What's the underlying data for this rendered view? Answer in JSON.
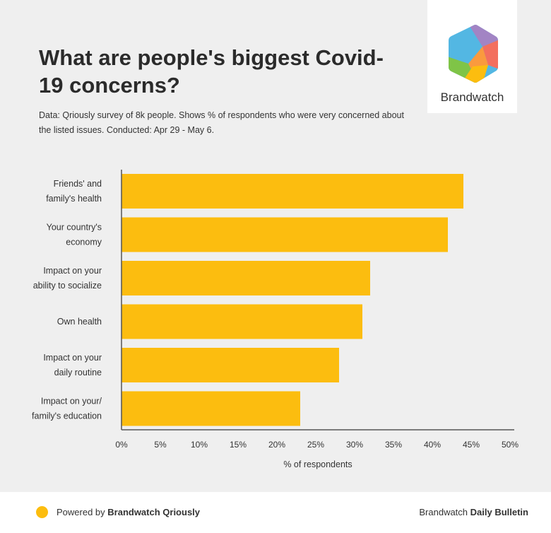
{
  "header": {
    "title": "What are people's biggest Covid-19 concerns?",
    "subtitle": "Data: Qriously survey of 8k people. Shows % of respondents who were very concerned about the listed issues. Conducted: Apr 29 - May 6."
  },
  "logo": {
    "text": "Brandwatch"
  },
  "colors": {
    "bar": "#fcbd0f",
    "background": "#efefef",
    "axis": "#555555"
  },
  "chart_data": {
    "type": "bar",
    "orientation": "horizontal",
    "title": "What are people's biggest Covid-19 concerns?",
    "categories": [
      [
        "Friends' and",
        "family's health"
      ],
      [
        "Your country's",
        "economy"
      ],
      [
        "Impact on your",
        "ability to socialize"
      ],
      [
        "Own health"
      ],
      [
        "Impact on your",
        "daily routine"
      ],
      [
        "Impact on your/",
        "family's education"
      ]
    ],
    "values": [
      44,
      42,
      32,
      31,
      28,
      23
    ],
    "xlim": [
      0,
      50
    ],
    "xticks": [
      "0%",
      "5%",
      "10%",
      "15%",
      "20%",
      "25%",
      "30%",
      "35%",
      "40%",
      "45%",
      "50%"
    ],
    "tick_values": [
      0,
      5,
      10,
      15,
      20,
      25,
      30,
      35,
      40,
      45,
      50
    ],
    "xlabel": "% of respondents",
    "ylabel": "",
    "grid": false
  },
  "footer": {
    "left_prefix": "Powered by ",
    "left_bold": "Brandwatch Qriously",
    "right_prefix": "Brandwatch ",
    "right_bold": "Daily Bulletin"
  }
}
